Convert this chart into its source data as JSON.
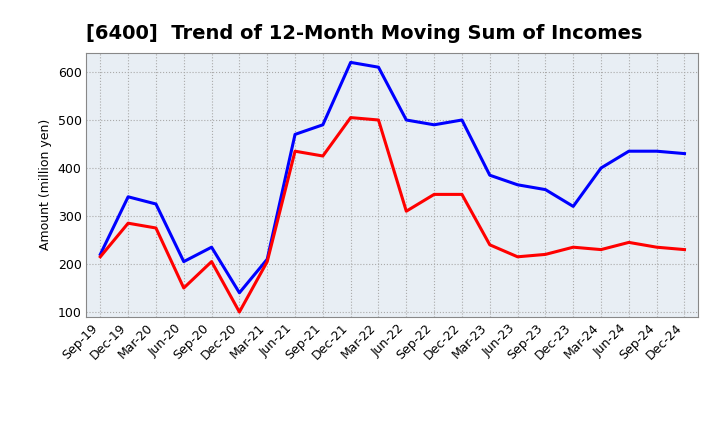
{
  "title": "[6400]  Trend of 12-Month Moving Sum of Incomes",
  "ylabel": "Amount (million yen)",
  "ylim": [
    90,
    640
  ],
  "yticks": [
    100,
    200,
    300,
    400,
    500,
    600
  ],
  "x_labels": [
    "Sep-19",
    "Dec-19",
    "Mar-20",
    "Jun-20",
    "Sep-20",
    "Dec-20",
    "Mar-21",
    "Jun-21",
    "Sep-21",
    "Dec-21",
    "Mar-22",
    "Jun-22",
    "Sep-22",
    "Dec-22",
    "Mar-23",
    "Jun-23",
    "Sep-23",
    "Dec-23",
    "Mar-24",
    "Jun-24",
    "Sep-24",
    "Dec-24"
  ],
  "ordinary_income": [
    220,
    340,
    325,
    205,
    235,
    140,
    210,
    470,
    490,
    620,
    610,
    500,
    490,
    500,
    385,
    365,
    355,
    320,
    400,
    435,
    435,
    430
  ],
  "net_income": [
    215,
    285,
    275,
    150,
    205,
    100,
    205,
    435,
    425,
    505,
    500,
    310,
    345,
    345,
    240,
    215,
    220,
    235,
    230,
    245,
    235,
    230
  ],
  "ordinary_color": "#0000FF",
  "net_color": "#FF0000",
  "grid_color": "#AAAAAA",
  "plot_bg_color": "#E8EEF4",
  "background_color": "#FFFFFF",
  "line_width": 2.2,
  "title_fontsize": 14,
  "axis_label_fontsize": 9,
  "tick_fontsize": 9
}
